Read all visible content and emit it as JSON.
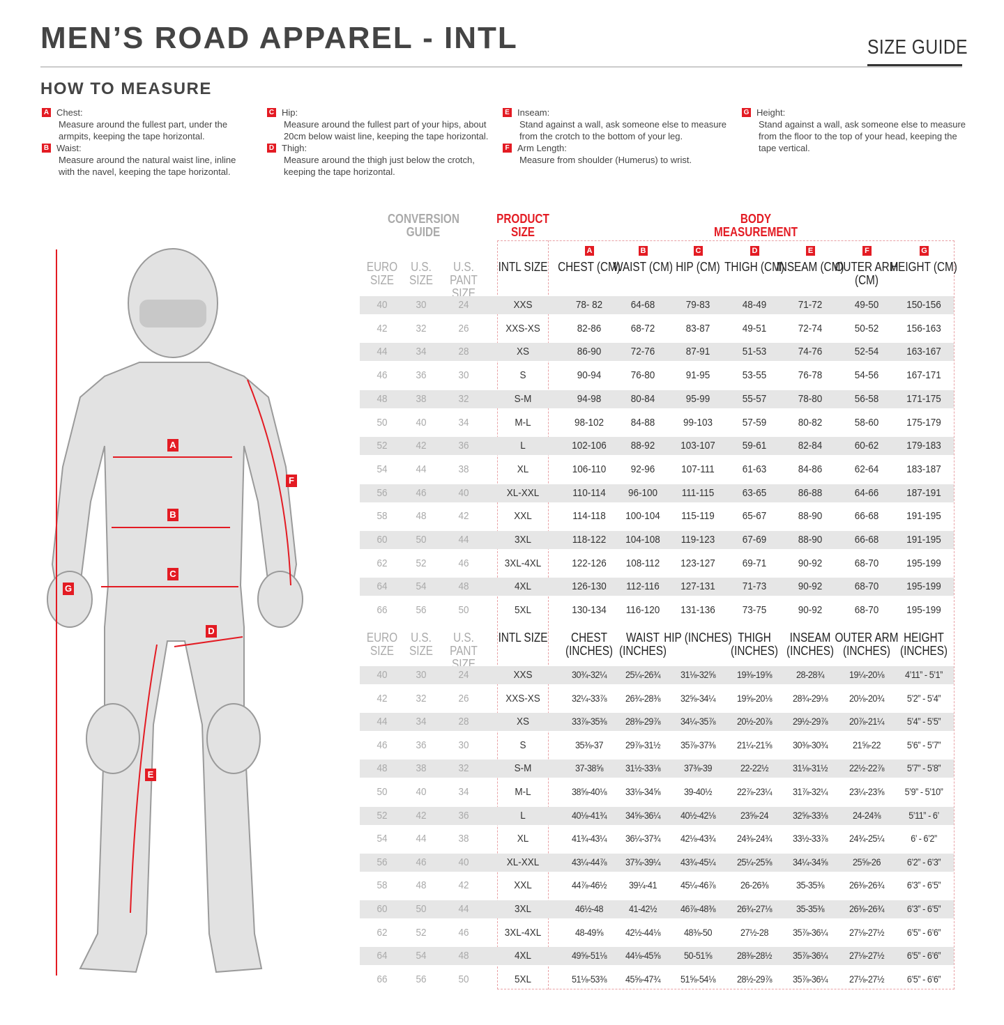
{
  "header": {
    "title": "MEN’S ROAD APPAREL - INTL",
    "size_guide": "SIZE GUIDE"
  },
  "how_to_measure": {
    "title": "HOW TO MEASURE",
    "items": [
      {
        "letter": "A",
        "label": "Chest:",
        "text": "Measure around the fullest part, under the armpits, keeping the tape horizontal."
      },
      {
        "letter": "B",
        "label": "Waist:",
        "text": "Measure around the natural waist line, inline with the navel, keeping the tape horizontal."
      },
      {
        "letter": "C",
        "label": "Hip:",
        "text": "Measure around the fullest part of your hips, about 20cm below waist line, keeping the tape horizontal."
      },
      {
        "letter": "D",
        "label": "Thigh:",
        "text": "Measure around the thigh just below the crotch, keeping the tape horizontal."
      },
      {
        "letter": "E",
        "label": "Inseam:",
        "text": "Stand against a wall, ask someone else to measure from the crotch to the bottom of your leg."
      },
      {
        "letter": "F",
        "label": "Arm Length:",
        "text": "Measure from shoulder (Humerus) to wrist."
      },
      {
        "letter": "G",
        "label": "Height:",
        "text": "Stand against a wall, ask someone else to measure from the floor to the top of your head, keeping the tape vertical."
      }
    ]
  },
  "table": {
    "group_headers": {
      "conversion": "CONVERSION GUIDE",
      "product": "PRODUCT SIZE",
      "body": "BODY MEASUREMENT"
    },
    "letters": [
      "A",
      "B",
      "C",
      "D",
      "E",
      "F",
      "G"
    ],
    "cm_headers": [
      "EURO SIZE",
      "U.S. SIZE",
      "U.S. PANT SIZE",
      "INTL SIZE",
      "CHEST (CM)",
      "WAIST (CM)",
      "HIP (CM)",
      "THIGH (CM)",
      "INSEAM (CM)",
      "OUTER ARM (CM)",
      "HEIGHT (CM)"
    ],
    "in_headers": [
      "EURO SIZE",
      "U.S. SIZE",
      "U.S. PANT SIZE",
      "INTL SIZE",
      "CHEST (INCHES)",
      "WAIST (INCHES)",
      "HIP (INCHES)",
      "THIGH (INCHES)",
      "INSEAM (INCHES)",
      "OUTER ARM (INCHES)",
      "HEIGHT (INCHES)"
    ],
    "cm_rows": [
      [
        "40",
        "30",
        "24",
        "XXS",
        "78- 82",
        "64-68",
        "79-83",
        "48-49",
        "71-72",
        "49-50",
        "150-156"
      ],
      [
        "42",
        "32",
        "26",
        "XXS-XS",
        "82-86",
        "68-72",
        "83-87",
        "49-51",
        "72-74",
        "50-52",
        "156-163"
      ],
      [
        "44",
        "34",
        "28",
        "XS",
        "86-90",
        "72-76",
        "87-91",
        "51-53",
        "74-76",
        "52-54",
        "163-167"
      ],
      [
        "46",
        "36",
        "30",
        "S",
        "90-94",
        "76-80",
        "91-95",
        "53-55",
        "76-78",
        "54-56",
        "167-171"
      ],
      [
        "48",
        "38",
        "32",
        "S-M",
        "94-98",
        "80-84",
        "95-99",
        "55-57",
        "78-80",
        "56-58",
        "171-175"
      ],
      [
        "50",
        "40",
        "34",
        "M-L",
        "98-102",
        "84-88",
        "99-103",
        "57-59",
        "80-82",
        "58-60",
        "175-179"
      ],
      [
        "52",
        "42",
        "36",
        "L",
        "102-106",
        "88-92",
        "103-107",
        "59-61",
        "82-84",
        "60-62",
        "179-183"
      ],
      [
        "54",
        "44",
        "38",
        "XL",
        "106-110",
        "92-96",
        "107-111",
        "61-63",
        "84-86",
        "62-64",
        "183-187"
      ],
      [
        "56",
        "46",
        "40",
        "XL-XXL",
        "110-114",
        "96-100",
        "111-115",
        "63-65",
        "86-88",
        "64-66",
        "187-191"
      ],
      [
        "58",
        "48",
        "42",
        "XXL",
        "114-118",
        "100-104",
        "115-119",
        "65-67",
        "88-90",
        "66-68",
        "191-195"
      ],
      [
        "60",
        "50",
        "44",
        "3XL",
        "118-122",
        "104-108",
        "119-123",
        "67-69",
        "88-90",
        "66-68",
        "191-195"
      ],
      [
        "62",
        "52",
        "46",
        "3XL-4XL",
        "122-126",
        "108-112",
        "123-127",
        "69-71",
        "90-92",
        "68-70",
        "195-199"
      ],
      [
        "64",
        "54",
        "48",
        "4XL",
        "126-130",
        "112-116",
        "127-131",
        "71-73",
        "90-92",
        "68-70",
        "195-199"
      ],
      [
        "66",
        "56",
        "50",
        "5XL",
        "130-134",
        "116-120",
        "131-136",
        "73-75",
        "90-92",
        "68-70",
        "195-199"
      ]
    ],
    "in_rows": [
      [
        "40",
        "30",
        "24",
        "XXS",
        "30¾-32¼",
        "25¼-26¾",
        "31⅛-32⅝",
        "19⅜-19⅝",
        "28-28¾",
        "19¼-20⅛",
        "4’11” - 5’1”"
      ],
      [
        "42",
        "32",
        "26",
        "XXS-XS",
        "32¼-33⅞",
        "26¾-28⅜",
        "32⅝-34¼",
        "19⅝-20⅛",
        "28¾-29⅛",
        "20⅛-20¾",
        "5’2” - 5’4”"
      ],
      [
        "44",
        "34",
        "28",
        "XS",
        "33⅞-35⅜",
        "28⅜-29⅞",
        "34¼-35⅞",
        "20½-20⅞",
        "29½-29⅞",
        "20⅞-21¼",
        "5’4” - 5’5”"
      ],
      [
        "46",
        "36",
        "30",
        "S",
        "35⅜-37",
        "29⅞-31½",
        "35⅞-37⅜",
        "21¼-21⅝",
        "30⅜-30¾",
        "21⅝-22",
        "5’6” - 5’7”"
      ],
      [
        "48",
        "38",
        "32",
        "S-M",
        "37-38⅝",
        "31½-33⅛",
        "37⅜-39",
        "22-22½",
        "31⅛-31½",
        "22½-22⅞",
        "5’7” - 5’8”"
      ],
      [
        "50",
        "40",
        "34",
        "M-L",
        "38⅝-40⅛",
        "33⅛-34⅝",
        "39-40½",
        "22⅞-23¼",
        "31⅞-32¼",
        "23¼-23⅝",
        "5’9” - 5’10”"
      ],
      [
        "52",
        "42",
        "36",
        "L",
        "40⅛-41¾",
        "34⅝-36¼",
        "40½-42⅛",
        "23⅝-24",
        "32⅝-33⅛",
        "24-24⅜",
        "5’11” - 6’"
      ],
      [
        "54",
        "44",
        "38",
        "XL",
        "41¾-43¼",
        "36¼-37¾",
        "42⅛-43¾",
        "24⅜-24¾",
        "33½-33⅞",
        "24¾-25¼",
        "6’ - 6’2”"
      ],
      [
        "56",
        "46",
        "40",
        "XL-XXL",
        "43¼-44⅞",
        "37¾-39¼",
        "43¾-45¼",
        "25¼-25⅝",
        "34¼-34⅝",
        "25⅝-26",
        "6’2” - 6’3”"
      ],
      [
        "58",
        "48",
        "42",
        "XXL",
        "44⅞-46½",
        "39¼-41",
        "45¼-46⅞",
        "26-26⅜",
        "35-35⅜",
        "26⅜-26¾",
        "6’3” - 6’5”"
      ],
      [
        "60",
        "50",
        "44",
        "3XL",
        "46½-48",
        "41-42½",
        "46⅞-48⅜",
        "26¾-27⅛",
        "35-35⅜",
        "26⅜-26¾",
        "6’3” - 6’5”"
      ],
      [
        "62",
        "52",
        "46",
        "3XL-4XL",
        "48-49⅝",
        "42½-44⅛",
        "48⅜-50",
        "27½-28",
        "35⅞-36¼",
        "27⅛-27½",
        "6’5” - 6’6”"
      ],
      [
        "64",
        "54",
        "48",
        "4XL",
        "49⅝-51⅛",
        "44⅛-45⅝",
        "50-51⅝",
        "28⅜-28½",
        "35⅞-36¼",
        "27⅛-27½",
        "6’5” - 6’6”"
      ],
      [
        "66",
        "56",
        "50",
        "5XL",
        "51⅛-53⅜",
        "45⅝-47¾",
        "51⅝-54⅛",
        "28½-29⅞",
        "35⅞-36¼",
        "27⅛-27½",
        "6’5” - 6’6”"
      ]
    ]
  },
  "figure": {
    "labels": [
      "A",
      "B",
      "C",
      "D",
      "E",
      "F",
      "G"
    ]
  },
  "colors": {
    "accent": "#e31b23",
    "stripe": "#e6e6e6",
    "muted": "#aaaaaa"
  }
}
